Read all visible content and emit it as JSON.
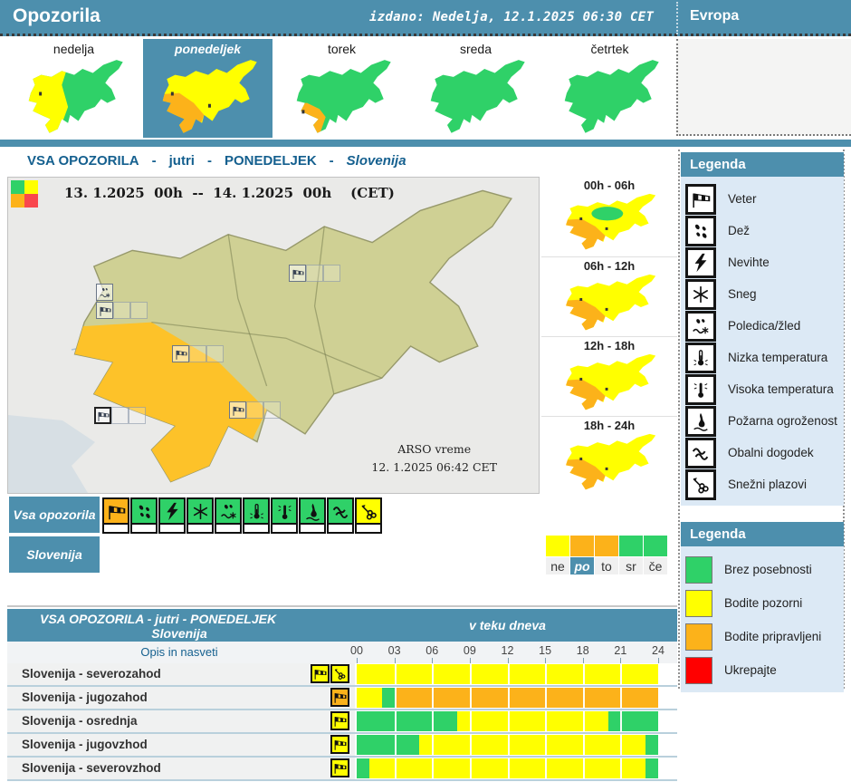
{
  "colors": {
    "teal": "#4d8fad",
    "green": "#2fd168",
    "yellow": "#ffff00",
    "orange": "#fcb21a",
    "red": "#ff0000",
    "map_orange": "#fdc229",
    "olive": "#cfd094",
    "legend_bg": "#dce9f5"
  },
  "header": {
    "title": "Opozorila",
    "issued": "izdano: Nedelja, 12.1.2025 06:30 CET",
    "europe": "Evropa"
  },
  "tabs": [
    {
      "label": "nedelja",
      "selected": false,
      "map": {
        "base": "green",
        "west": "yellow"
      }
    },
    {
      "label": "ponedeljek",
      "selected": true,
      "map": {
        "base": "yellow",
        "sw": "orange"
      }
    },
    {
      "label": "torek",
      "selected": false,
      "map": {
        "base": "green",
        "sw_small": "orange"
      }
    },
    {
      "label": "sreda",
      "selected": false,
      "map": {
        "base": "green"
      }
    },
    {
      "label": "četrtek",
      "selected": false,
      "map": {
        "base": "green"
      }
    }
  ],
  "section_title": {
    "part1": "VSA OPOZORILA",
    "sep1": "-",
    "part2": "jutri",
    "sep2": "-",
    "part3": "PONEDELJEK",
    "sep3": "-",
    "part4": "Slovenija"
  },
  "main_map": {
    "date_range": "13. 1.2025  00h  --  14. 1.2025  00h    (CET)",
    "credit_line1": "ARSO vreme",
    "credit_line2": "12. 1.2025  06:42 CET",
    "base": "olive",
    "sw": "map_orange"
  },
  "time_maps": [
    {
      "label": "00h - 06h",
      "base": "yellow",
      "sw": "orange",
      "center": "green"
    },
    {
      "label": "06h - 12h",
      "base": "yellow",
      "sw": "orange"
    },
    {
      "label": "12h - 18h",
      "base": "yellow",
      "sw": "orange"
    },
    {
      "label": "18h - 24h",
      "base": "yellow",
      "sw": "orange"
    }
  ],
  "legend_types": {
    "title": "Legenda",
    "items": [
      {
        "icon": "wind",
        "label": "Veter"
      },
      {
        "icon": "rain",
        "label": "Dež"
      },
      {
        "icon": "storm",
        "label": "Nevihte"
      },
      {
        "icon": "snow",
        "label": "Sneg"
      },
      {
        "icon": "ice",
        "label": "Poledica/žled"
      },
      {
        "icon": "low-temp",
        "label": "Nizka temperatura"
      },
      {
        "icon": "high-temp",
        "label": "Visoka temperatura"
      },
      {
        "icon": "fire",
        "label": "Požarna ogroženost"
      },
      {
        "icon": "coastal",
        "label": "Obalni dogodek"
      },
      {
        "icon": "avalanche",
        "label": "Snežni plazovi"
      }
    ]
  },
  "legend_levels": {
    "title": "Legenda",
    "items": [
      {
        "level": "green",
        "label": "Brez posebnosti"
      },
      {
        "level": "yellow",
        "label": "Bodite pozorni"
      },
      {
        "level": "orange",
        "label": "Bodite pripravljeni"
      },
      {
        "level": "red",
        "label": "Ukrepajte"
      }
    ]
  },
  "all_warnings": {
    "label": "Vsa opozorila",
    "icons": [
      {
        "icon": "wind",
        "level": "orange"
      },
      {
        "icon": "rain",
        "level": "green"
      },
      {
        "icon": "storm",
        "level": "green"
      },
      {
        "icon": "snow",
        "level": "green"
      },
      {
        "icon": "ice",
        "level": "green"
      },
      {
        "icon": "low-temp",
        "level": "green"
      },
      {
        "icon": "high-temp",
        "level": "green"
      },
      {
        "icon": "fire",
        "level": "green"
      },
      {
        "icon": "coastal",
        "level": "green"
      },
      {
        "icon": "avalanche",
        "level": "yellow"
      }
    ]
  },
  "region_row": {
    "label": "Slovenija",
    "days": [
      {
        "key": "ne",
        "level": "yellow",
        "selected": false
      },
      {
        "key": "po",
        "level": "orange",
        "selected": true
      },
      {
        "key": "to",
        "level": "orange",
        "selected": false
      },
      {
        "key": "sr",
        "level": "green",
        "selected": false
      },
      {
        "key": "če",
        "level": "green",
        "selected": false
      }
    ]
  },
  "table": {
    "title": "VSA OPOZORILA - jutri - PONEDELJEK",
    "subtitle": "Slovenija",
    "desc_header": "Opis in nasveti",
    "time_header": "v teku dneva",
    "hours": [
      "00",
      "03",
      "06",
      "09",
      "12",
      "15",
      "18",
      "21",
      "24"
    ],
    "rows": [
      {
        "label": "Slovenija - severozahod",
        "icons": [
          {
            "icon": "wind",
            "level": "yellow"
          },
          {
            "icon": "avalanche",
            "level": "yellow"
          }
        ],
        "segments": [
          {
            "from": 0,
            "to": 24,
            "level": "yellow"
          }
        ]
      },
      {
        "label": "Slovenija - jugozahod",
        "icons": [
          {
            "icon": "wind",
            "level": "orange"
          }
        ],
        "segments": [
          {
            "from": 0,
            "to": 2,
            "level": "yellow"
          },
          {
            "from": 2,
            "to": 3,
            "level": "green"
          },
          {
            "from": 3,
            "to": 24,
            "level": "orange"
          }
        ]
      },
      {
        "label": "Slovenija - osrednja",
        "icons": [
          {
            "icon": "wind",
            "level": "yellow"
          }
        ],
        "segments": [
          {
            "from": 0,
            "to": 8,
            "level": "green"
          },
          {
            "from": 8,
            "to": 20,
            "level": "yellow"
          },
          {
            "from": 20,
            "to": 24,
            "level": "green"
          }
        ]
      },
      {
        "label": "Slovenija - jugovzhod",
        "icons": [
          {
            "icon": "wind",
            "level": "yellow"
          }
        ],
        "segments": [
          {
            "from": 0,
            "to": 5,
            "level": "green"
          },
          {
            "from": 5,
            "to": 23,
            "level": "yellow"
          },
          {
            "from": 23,
            "to": 24,
            "level": "green"
          }
        ]
      },
      {
        "label": "Slovenija - severovzhod",
        "icons": [
          {
            "icon": "wind",
            "level": "yellow"
          }
        ],
        "segments": [
          {
            "from": 0,
            "to": 1,
            "level": "green"
          },
          {
            "from": 1,
            "to": 23,
            "level": "yellow"
          },
          {
            "from": 23,
            "to": 24,
            "level": "green"
          }
        ]
      }
    ]
  }
}
